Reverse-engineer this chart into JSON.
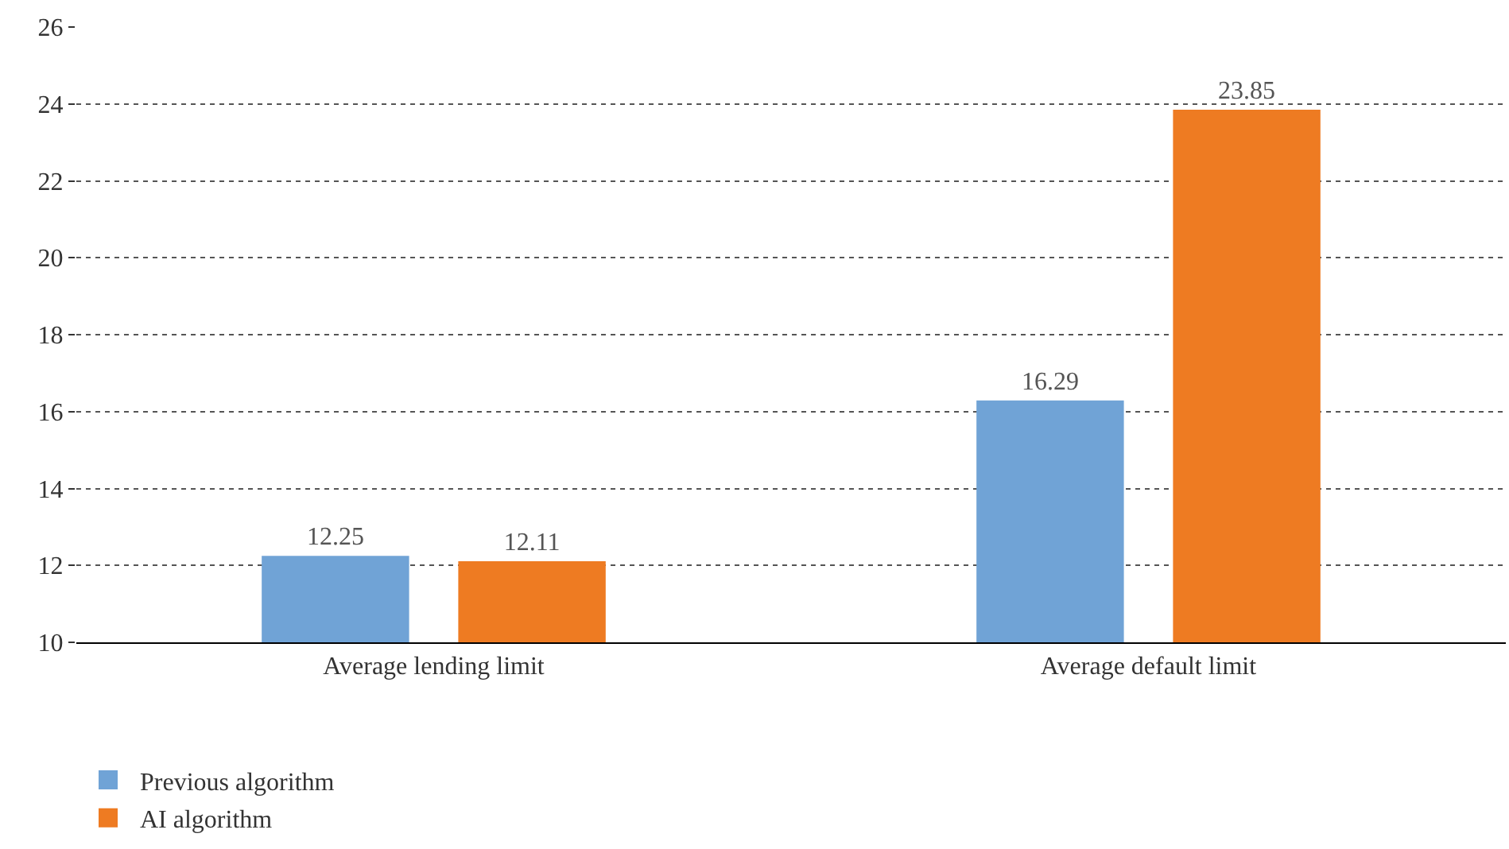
{
  "chart_data": {
    "type": "bar",
    "categories": [
      "Average lending limit",
      "Average default limit"
    ],
    "series": [
      {
        "name": "Previous algorithm",
        "color": "#70a3d6",
        "values": [
          12.25,
          16.29
        ]
      },
      {
        "name": "AI algorithm",
        "color": "#ee7b22",
        "values": [
          12.11,
          23.85
        ]
      }
    ],
    "ylim": [
      10,
      26
    ],
    "yticks": [
      10,
      12,
      14,
      16,
      18,
      20,
      22,
      24,
      26
    ],
    "grid": "y",
    "legend": "bottom",
    "data_labels": true
  }
}
